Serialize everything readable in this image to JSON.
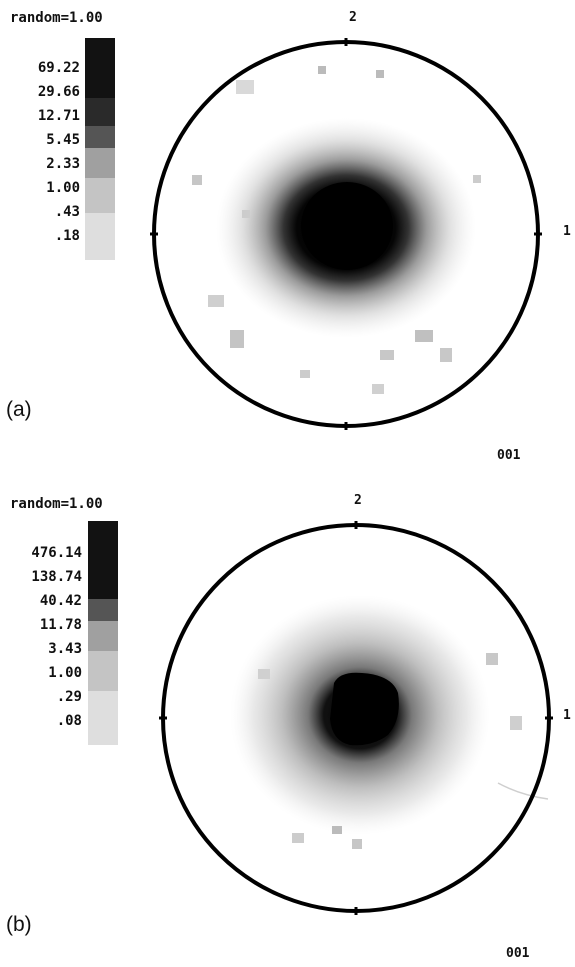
{
  "panels": [
    {
      "id": "a",
      "panel_label": "(a)",
      "legend_title": "random=1.00",
      "legend_levels": [
        "69.22",
        "29.66",
        "12.71",
        "5.45",
        "2.33",
        "1.00",
        ".43",
        ".18"
      ],
      "axis_top": "2",
      "axis_right": "1",
      "pole_label": "001"
    },
    {
      "id": "b",
      "panel_label": "(b)",
      "legend_title": "random=1.00",
      "legend_levels": [
        "476.14",
        "138.74",
        "40.42",
        "11.78",
        "3.43",
        "1.00",
        ".29",
        ".08"
      ],
      "axis_top": "2",
      "axis_right": "1",
      "pole_label": "001"
    }
  ],
  "colors": {
    "level_shades": [
      "#101010",
      "#1e1e1e",
      "#3a3a3a",
      "#6e6e6e",
      "#9a9a9a",
      "#bdbdbd",
      "#d6d6d6",
      "#eaeaea"
    ],
    "outline": "#000000"
  }
}
